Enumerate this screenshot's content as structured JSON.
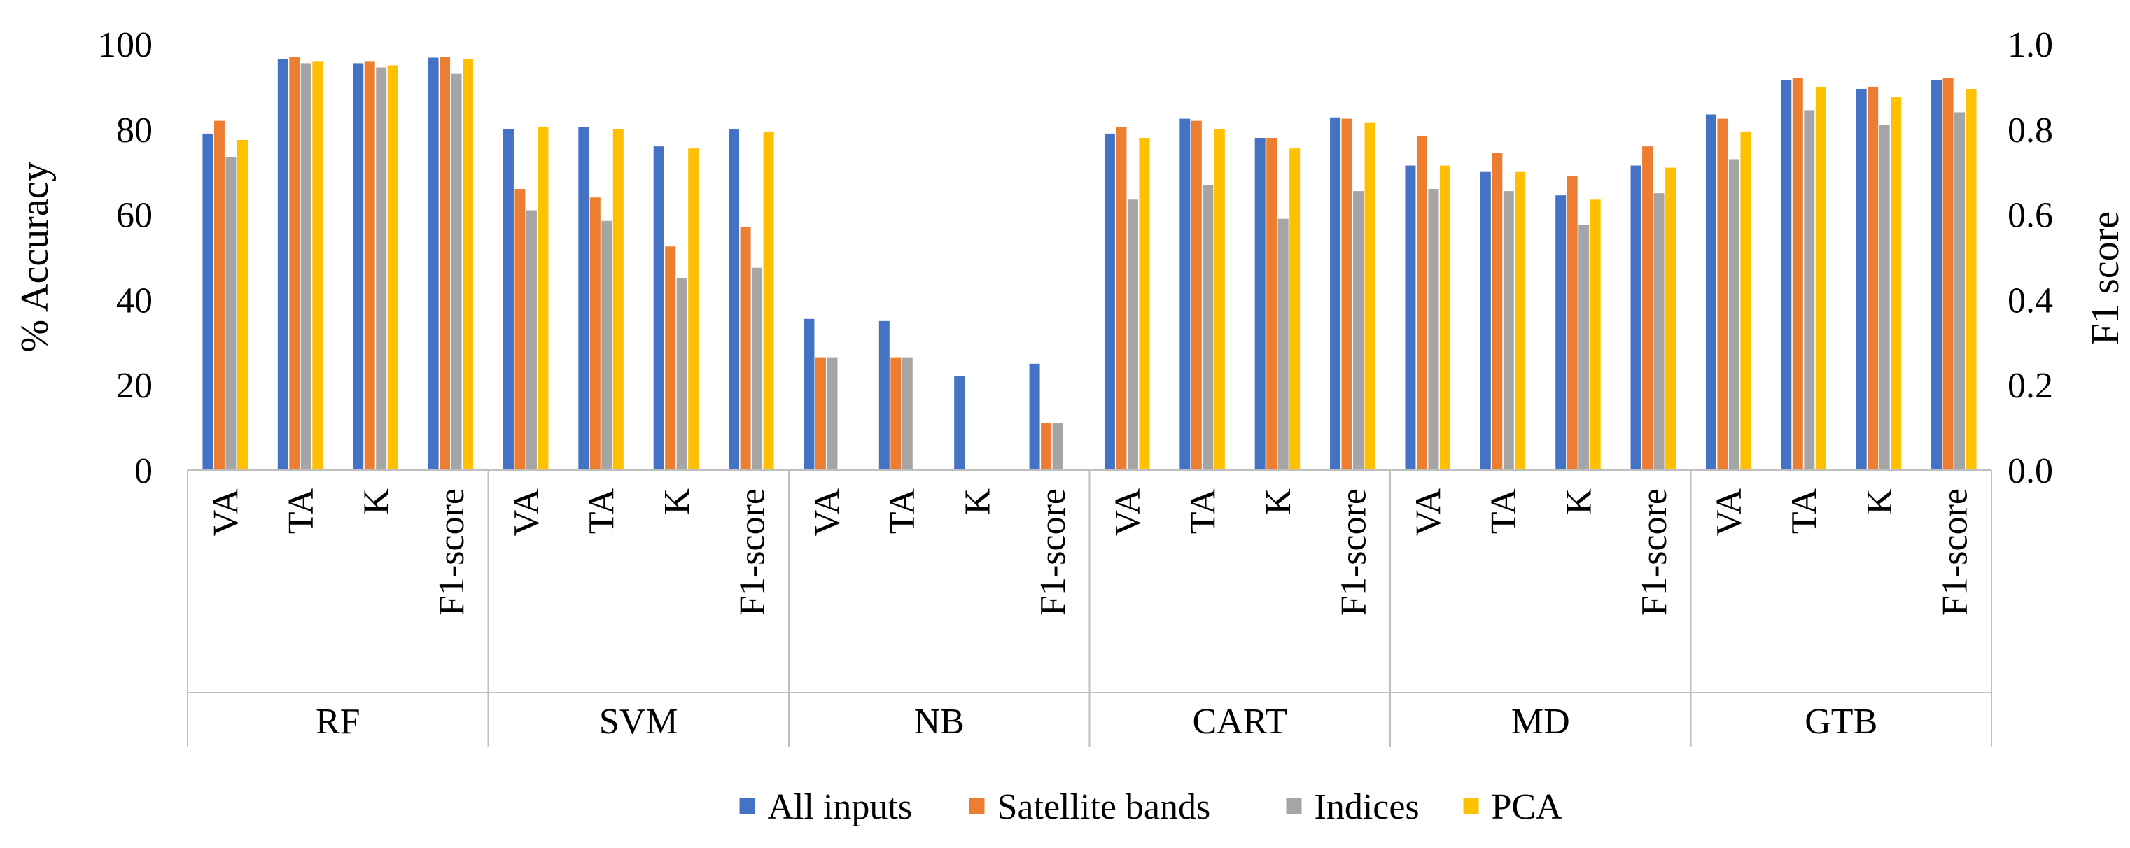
{
  "chart_data": {
    "type": "bar",
    "title": "",
    "ylabel": "% Accuracy",
    "y2label": "F1 score",
    "ylim": [
      0,
      100
    ],
    "y2lim": [
      0,
      1
    ],
    "yticks": [
      "0",
      "20",
      "40",
      "60",
      "80",
      "100"
    ],
    "y2ticks": [
      "0.0",
      "0.2",
      "0.4",
      "0.6",
      "0.8",
      "1.0"
    ],
    "grid": false,
    "legend_position": "bottom",
    "groups": [
      {
        "name": "RF",
        "categories": [
          "VA",
          "TA",
          "K",
          "F1-score"
        ]
      },
      {
        "name": "SVM",
        "categories": [
          "VA",
          "TA",
          "K",
          "F1-score"
        ]
      },
      {
        "name": "NB",
        "categories": [
          "VA",
          "TA",
          "K",
          "F1-score"
        ]
      },
      {
        "name": "CART",
        "categories": [
          "VA",
          "TA",
          "K",
          "F1-score"
        ]
      },
      {
        "name": "MD",
        "categories": [
          "VA",
          "TA",
          "K",
          "F1-score"
        ]
      },
      {
        "name": "GTB",
        "categories": [
          "VA",
          "TA",
          "K",
          "F1-score"
        ]
      }
    ],
    "series": [
      {
        "name": "All inputs",
        "color": "#4472C4",
        "values": [
          79,
          96.5,
          95.5,
          96.8,
          80,
          80.5,
          76,
          80,
          35.5,
          35,
          22,
          25,
          79,
          82.5,
          78,
          82.8,
          71.5,
          70,
          64.5,
          71.5,
          83.5,
          91.5,
          89.5,
          91.5
        ]
      },
      {
        "name": "Satellite bands",
        "color": "#ED7D31",
        "values": [
          82,
          97,
          96,
          97,
          66,
          64,
          52.5,
          57,
          26.5,
          26.5,
          null,
          11,
          80.5,
          82,
          78,
          82.5,
          78.5,
          74.5,
          69,
          76,
          82.5,
          92,
          90,
          92
        ]
      },
      {
        "name": "Indices",
        "color": "#A5A5A5",
        "values": [
          73.5,
          95.5,
          94.5,
          93,
          61,
          58.5,
          45,
          47.5,
          26.5,
          26.5,
          null,
          11,
          63.5,
          67,
          59,
          65.5,
          66,
          65.5,
          57.5,
          65,
          73,
          84.5,
          81,
          84
        ]
      },
      {
        "name": "PCA",
        "color": "#FFC000",
        "values": [
          77.5,
          96,
          95,
          96.5,
          80.5,
          80,
          75.5,
          79.5,
          null,
          null,
          null,
          null,
          78,
          80,
          75.5,
          81.5,
          71.5,
          70,
          63.5,
          71,
          79.5,
          90,
          87.5,
          89.5
        ]
      }
    ]
  }
}
